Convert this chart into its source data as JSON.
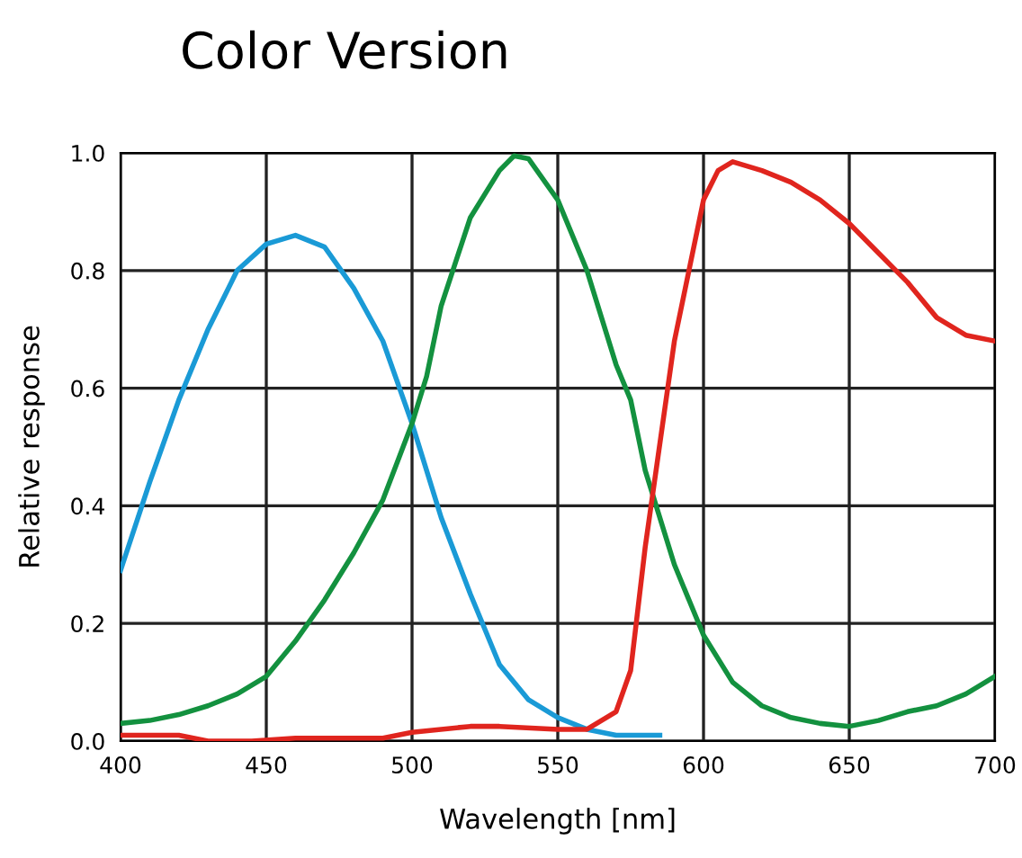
{
  "chart_data": {
    "type": "line",
    "title": "Color Version",
    "xlabel": "Wavelength [nm]",
    "ylabel": "Relative response",
    "xlim": [
      400,
      700
    ],
    "xticks": [
      400,
      450,
      500,
      550,
      600,
      650,
      700
    ],
    "ylim": [
      0,
      1
    ],
    "yticks": [
      {
        "value": 0,
        "label": "0.0"
      },
      0.2,
      0.4,
      0.6,
      0.8,
      {
        "value": 1,
        "label": "1.0"
      }
    ],
    "grid": true,
    "legend": false,
    "marker": "none",
    "line_style": "solid",
    "series": [
      {
        "color": "#1a9ad6",
        "x": [
          400,
          410,
          420,
          430,
          440,
          450,
          460,
          470,
          480,
          490,
          500,
          510,
          520,
          530,
          540,
          550,
          560,
          570,
          585
        ],
        "values": [
          0.29,
          0.44,
          0.58,
          0.7,
          0.8,
          0.845,
          0.86,
          0.84,
          0.77,
          0.68,
          0.54,
          0.38,
          0.25,
          0.13,
          0.07,
          0.04,
          0.02,
          0.01,
          0.01
        ]
      },
      {
        "color": "#13913f",
        "x": [
          400,
          410,
          420,
          430,
          440,
          450,
          460,
          470,
          480,
          490,
          500,
          505,
          510,
          520,
          530,
          535,
          540,
          550,
          560,
          570,
          575,
          580,
          590,
          600,
          610,
          620,
          630,
          640,
          650,
          660,
          670,
          680,
          690,
          700
        ],
        "values": [
          0.03,
          0.035,
          0.045,
          0.06,
          0.08,
          0.11,
          0.17,
          0.24,
          0.32,
          0.41,
          0.54,
          0.62,
          0.74,
          0.89,
          0.97,
          0.995,
          0.99,
          0.92,
          0.8,
          0.64,
          0.58,
          0.46,
          0.3,
          0.18,
          0.1,
          0.06,
          0.04,
          0.03,
          0.025,
          0.035,
          0.05,
          0.06,
          0.08,
          0.11
        ]
      },
      {
        "color": "#e0251e",
        "x": [
          400,
          420,
          430,
          445,
          460,
          480,
          490,
          500,
          520,
          530,
          550,
          560,
          570,
          575,
          580,
          590,
          595,
          600,
          605,
          610,
          620,
          630,
          640,
          650,
          660,
          670,
          680,
          690,
          700
        ],
        "values": [
          0.01,
          0.01,
          0.0,
          0.0,
          0.005,
          0.005,
          0.005,
          0.015,
          0.025,
          0.025,
          0.02,
          0.02,
          0.05,
          0.12,
          0.33,
          0.68,
          0.8,
          0.92,
          0.97,
          0.985,
          0.97,
          0.95,
          0.92,
          0.88,
          0.83,
          0.78,
          0.72,
          0.69,
          0.68
        ]
      }
    ]
  }
}
